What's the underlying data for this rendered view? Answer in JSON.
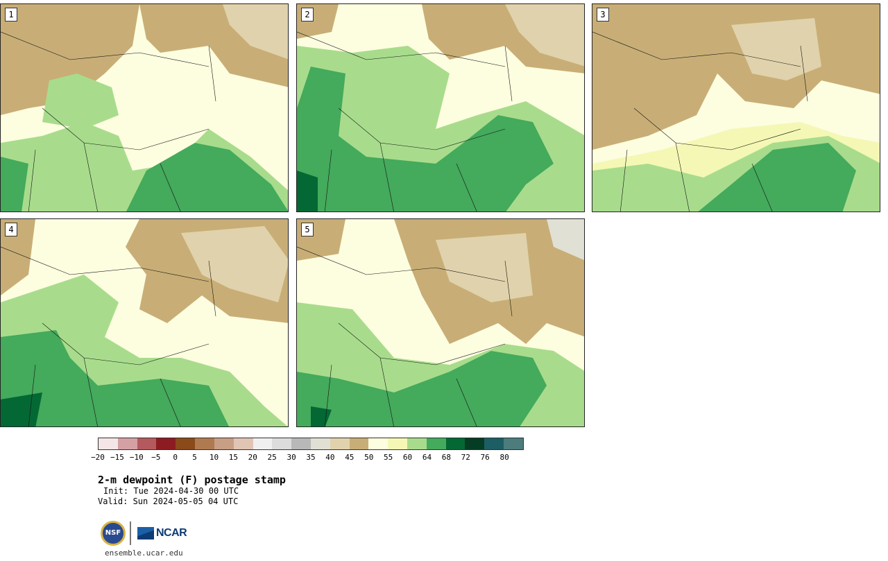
{
  "panels": [
    {
      "label": "1"
    },
    {
      "label": "2"
    },
    {
      "label": "3"
    },
    {
      "label": "4"
    },
    {
      "label": "5"
    }
  ],
  "colorbar": {
    "colors": [
      "#f4e6e6",
      "#d4a0a4",
      "#b45a5e",
      "#8c1c22",
      "#8a4a1a",
      "#b07a50",
      "#c89e84",
      "#e0c4b4",
      "#efefef",
      "#dcdcdc",
      "#b8b8b8",
      "#e0e0d4",
      "#e0d2ac",
      "#c8ae76",
      "#fdfde0",
      "#f4f8b4",
      "#a8dc8c",
      "#44aa5c",
      "#046834",
      "#043c24",
      "#1c5e64",
      "#4c7c7c"
    ],
    "tick_labels": [
      "−20",
      "−15",
      "−10",
      "−5",
      "0",
      "5",
      "10",
      "15",
      "20",
      "25",
      "30",
      "35",
      "40",
      "45",
      "50",
      "55",
      "60",
      "64",
      "68",
      "72",
      "76",
      "80"
    ]
  },
  "map_colors": {
    "dry_brown": "#c8ae76",
    "light_tan": "#e0d2ac",
    "gray_tan": "#e0e0d4",
    "cream": "#fdfde0",
    "pale_yellow": "#f4f8b4",
    "light_green": "#a8dc8c",
    "green": "#44aa5c",
    "dark_green": "#046834",
    "border": "#111111"
  },
  "title": "2-m dewpoint (F) postage stamp",
  "init": "Init: Tue 2024-04-30 00 UTC",
  "valid": "Valid: Sun 2024-05-05 04 UTC",
  "logos": {
    "nsf": "NSF",
    "ncar": "NCAR"
  },
  "site": "ensemble.ucar.edu"
}
